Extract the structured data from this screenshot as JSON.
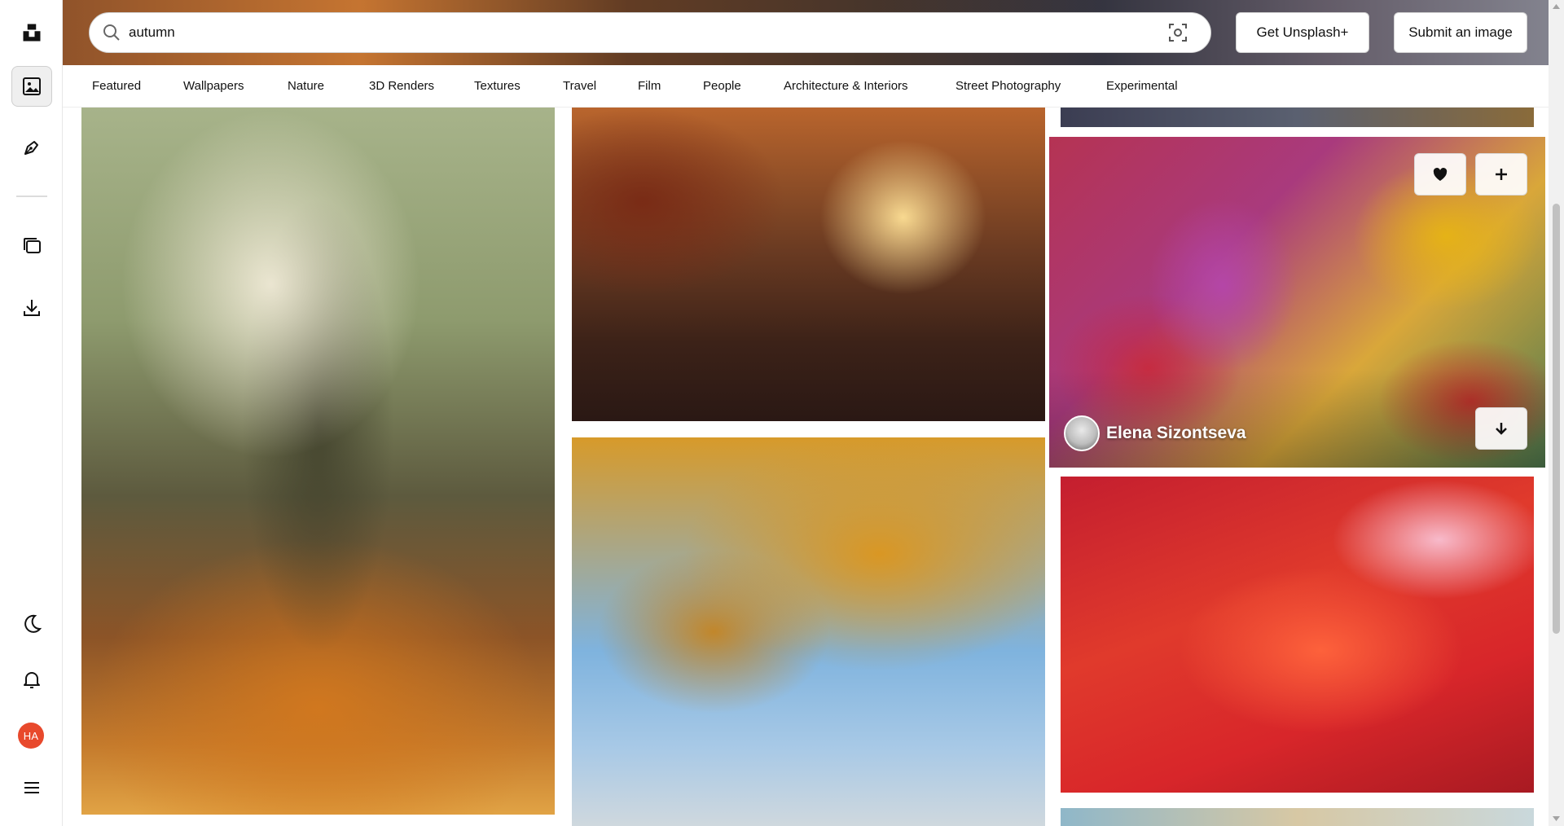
{
  "rail": {
    "items": [
      {
        "name": "unsplash-logo",
        "icon": "unsplash-logo-icon"
      },
      {
        "name": "photos",
        "icon": "image-icon",
        "active": true
      },
      {
        "name": "illustrations",
        "icon": "pen-nib-icon"
      },
      {
        "name": "collections",
        "icon": "collections-icon"
      },
      {
        "name": "downloads",
        "icon": "download-icon"
      },
      {
        "name": "theme",
        "icon": "moon-icon"
      },
      {
        "name": "notifications",
        "icon": "bell-icon"
      },
      {
        "name": "menu",
        "icon": "hamburger-menu-icon"
      }
    ],
    "avatar_initials": "HA",
    "avatar_color": "#e8492c"
  },
  "header": {
    "search_value": "autumn",
    "get_plus_label": "Get Unsplash+",
    "submit_label": "Submit an image"
  },
  "categories": [
    "Featured",
    "Wallpapers",
    "Nature",
    "3D Renders",
    "Textures",
    "Travel",
    "Film",
    "People",
    "Architecture & Interiors",
    "Street Photography",
    "Experimental"
  ],
  "photos": [
    {
      "name": "falling-leaves-forest-photo"
    },
    {
      "name": "autumn-forest-path-photo"
    },
    {
      "name": "yellow-autumn-tree-photo"
    },
    {
      "name": "colorful-maple-leaves-photo",
      "author": "Elena Sizontseva"
    },
    {
      "name": "red-maple-leaves-photo"
    }
  ]
}
